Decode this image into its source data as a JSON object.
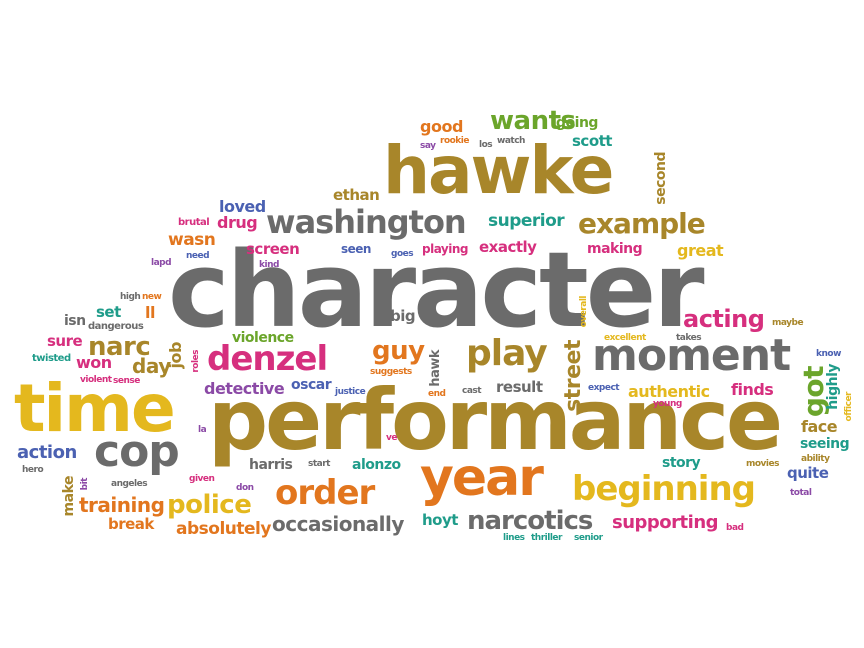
{
  "colors": {
    "gray": "#6b6b6b",
    "olive": "#a8862a",
    "mustard": "#e4b81e",
    "orange": "#e2761e",
    "magenta": "#d62f7e",
    "teal": "#1f9c8a",
    "green": "#6ba52b",
    "blue": "#4b61b2",
    "purple": "#8b4aa6",
    "red": "#cc3c2a"
  },
  "words": [
    {
      "text": "character",
      "c": "gray"
    },
    {
      "text": "performance",
      "c": "olive"
    },
    {
      "text": "hawke",
      "c": "olive"
    },
    {
      "text": "time",
      "c": "mustard"
    },
    {
      "text": "year",
      "c": "orange"
    },
    {
      "text": "moment",
      "c": "gray"
    },
    {
      "text": "cop",
      "c": "gray"
    },
    {
      "text": "washington",
      "c": "gray"
    },
    {
      "text": "denzel",
      "c": "magenta"
    },
    {
      "text": "play",
      "c": "olive"
    },
    {
      "text": "order",
      "c": "orange"
    },
    {
      "text": "beginning",
      "c": "mustard"
    },
    {
      "text": "example",
      "c": "olive"
    },
    {
      "text": "narcotics",
      "c": "gray"
    },
    {
      "text": "acting",
      "c": "magenta"
    },
    {
      "text": "police",
      "c": "mustard"
    },
    {
      "text": "wants",
      "c": "green"
    },
    {
      "text": "narc",
      "c": "olive"
    },
    {
      "text": "guy",
      "c": "orange"
    },
    {
      "text": "got",
      "c": "green"
    },
    {
      "text": "occasionally",
      "c": "gray"
    },
    {
      "text": "supporting",
      "c": "magenta"
    },
    {
      "text": "street",
      "c": "olive"
    },
    {
      "text": "training",
      "c": "orange"
    },
    {
      "text": "absolutely",
      "c": "orange"
    },
    {
      "text": "action",
      "c": "blue"
    },
    {
      "text": "superior",
      "c": "teal"
    },
    {
      "text": "drug",
      "c": "magenta"
    },
    {
      "text": "wasn",
      "c": "orange"
    },
    {
      "text": "screen",
      "c": "magenta"
    },
    {
      "text": "exactly",
      "c": "magenta"
    },
    {
      "text": "making",
      "c": "magenta"
    },
    {
      "text": "great",
      "c": "mustard"
    },
    {
      "text": "loved",
      "c": "blue"
    },
    {
      "text": "ethan",
      "c": "olive"
    },
    {
      "text": "good",
      "c": "orange"
    },
    {
      "text": "going",
      "c": "green"
    },
    {
      "text": "scott",
      "c": "teal"
    },
    {
      "text": "second",
      "c": "olive"
    },
    {
      "text": "day",
      "c": "olive"
    },
    {
      "text": "set",
      "c": "teal"
    },
    {
      "text": "won",
      "c": "magenta"
    },
    {
      "text": "sure",
      "c": "magenta"
    },
    {
      "text": "job",
      "c": "olive"
    },
    {
      "text": "detective",
      "c": "purple"
    },
    {
      "text": "oscar",
      "c": "blue"
    },
    {
      "text": "violence",
      "c": "green"
    },
    {
      "text": "result",
      "c": "gray"
    },
    {
      "text": "authentic",
      "c": "mustard"
    },
    {
      "text": "finds",
      "c": "magenta"
    },
    {
      "text": "face",
      "c": "olive"
    },
    {
      "text": "seeing",
      "c": "teal"
    },
    {
      "text": "quite",
      "c": "blue"
    },
    {
      "text": "story",
      "c": "teal"
    },
    {
      "text": "harris",
      "c": "gray"
    },
    {
      "text": "alonzo",
      "c": "teal"
    },
    {
      "text": "hoyt",
      "c": "teal"
    },
    {
      "text": "break",
      "c": "orange"
    },
    {
      "text": "make",
      "c": "olive"
    },
    {
      "text": "isn",
      "c": "gray"
    },
    {
      "text": "ll",
      "c": "orange"
    },
    {
      "text": "big",
      "c": "gray"
    },
    {
      "text": "highly",
      "c": "teal"
    },
    {
      "text": "brutal",
      "c": "magenta"
    },
    {
      "text": "seen",
      "c": "blue"
    },
    {
      "text": "playing",
      "c": "magenta"
    },
    {
      "text": "hawk",
      "c": "gray"
    },
    {
      "text": "twisted",
      "c": "teal"
    },
    {
      "text": "dangerous",
      "c": "gray"
    },
    {
      "text": "high",
      "c": "gray"
    },
    {
      "text": "new",
      "c": "orange"
    },
    {
      "text": "need",
      "c": "blue"
    },
    {
      "text": "lapd",
      "c": "purple"
    },
    {
      "text": "goes",
      "c": "blue"
    },
    {
      "text": "kind",
      "c": "purple"
    },
    {
      "text": "roles",
      "c": "magenta"
    },
    {
      "text": "suggests",
      "c": "orange"
    },
    {
      "text": "justice",
      "c": "blue"
    },
    {
      "text": "end",
      "c": "orange"
    },
    {
      "text": "cast",
      "c": "gray"
    },
    {
      "text": "expect",
      "c": "blue"
    },
    {
      "text": "young",
      "c": "magenta"
    },
    {
      "text": "excellent",
      "c": "mustard"
    },
    {
      "text": "takes",
      "c": "gray"
    },
    {
      "text": "maybe",
      "c": "olive"
    },
    {
      "text": "know",
      "c": "blue"
    },
    {
      "text": "officer",
      "c": "mustard"
    },
    {
      "text": "overall",
      "c": "mustard"
    },
    {
      "text": "violent",
      "c": "magenta"
    },
    {
      "text": "sense",
      "c": "magenta"
    },
    {
      "text": "la",
      "c": "purple"
    },
    {
      "text": "ve",
      "c": "magenta"
    },
    {
      "text": "start",
      "c": "gray"
    },
    {
      "text": "hero",
      "c": "gray"
    },
    {
      "text": "bit",
      "c": "purple"
    },
    {
      "text": "angeles",
      "c": "gray"
    },
    {
      "text": "given",
      "c": "magenta"
    },
    {
      "text": "don",
      "c": "purple"
    },
    {
      "text": "lines",
      "c": "teal"
    },
    {
      "text": "thriller",
      "c": "teal"
    },
    {
      "text": "senior",
      "c": "teal"
    },
    {
      "text": "movies",
      "c": "olive"
    },
    {
      "text": "ability",
      "c": "olive"
    },
    {
      "text": "total",
      "c": "purple"
    },
    {
      "text": "bad",
      "c": "magenta"
    },
    {
      "text": "say",
      "c": "purple"
    },
    {
      "text": "rookie",
      "c": "orange"
    },
    {
      "text": "los",
      "c": "gray"
    },
    {
      "text": "watch",
      "c": "gray"
    }
  ]
}
